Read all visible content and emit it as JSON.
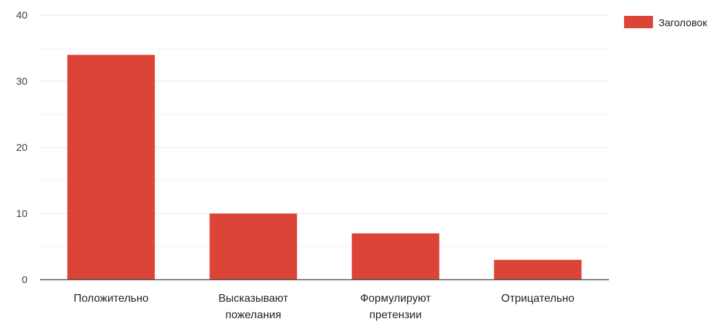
{
  "chart_data": {
    "type": "bar",
    "categories": [
      [
        "Положительно"
      ],
      [
        "Высказывают",
        "пожелания"
      ],
      [
        "Формулируют",
        "претензии"
      ],
      [
        "Отрицательно"
      ]
    ],
    "series": [
      {
        "name": "Заголовок",
        "values": [
          34,
          10,
          7,
          3
        ]
      }
    ],
    "ylim": [
      0,
      40
    ],
    "yticks": [
      0,
      10,
      20,
      30,
      40
    ],
    "minor_gridlines": true,
    "legend_position": "top-right",
    "colors": {
      "bar": "#dc4437",
      "grid": "#e6e6e6",
      "axis": "#333333"
    }
  }
}
